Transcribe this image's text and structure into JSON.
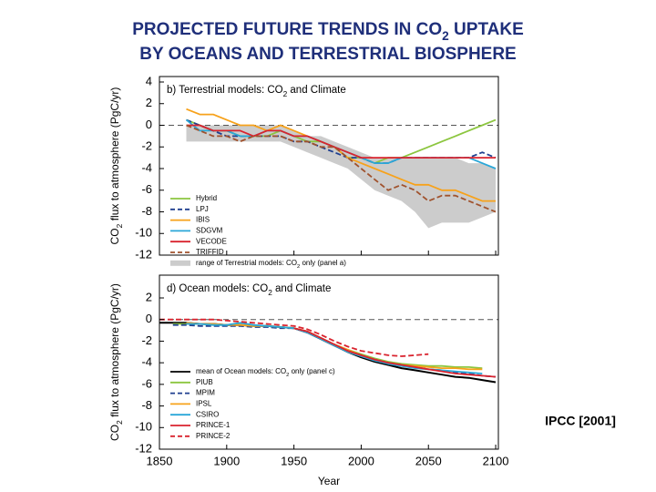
{
  "title_lines": [
    [
      "PROJECTED FUTURE TRENDS IN CO",
      "2",
      " UPTAKE"
    ],
    [
      "BY OCEANS AND TERRESTRIAL BIOSPHERE"
    ]
  ],
  "annotation": "IPCC [2001]",
  "chart_data": [
    {
      "type": "line",
      "title": [
        "b) Terrestrial models: CO",
        "2",
        " and Climate"
      ],
      "ylabel": [
        "CO",
        "2",
        " flux to atmosphere (PgC/yr)"
      ],
      "x": [
        1870,
        1880,
        1890,
        1900,
        1910,
        1920,
        1930,
        1940,
        1950,
        1960,
        1970,
        1980,
        1990,
        2000,
        2010,
        2020,
        2030,
        2040,
        2050,
        2060,
        2070,
        2080,
        2090,
        2100
      ],
      "xlim": [
        1850,
        2102
      ],
      "xticks": [
        1850,
        1900,
        1950,
        2000,
        2050,
        2100
      ],
      "ylim": [
        -12,
        4
      ],
      "yticks": [
        4,
        2,
        0,
        -2,
        -4,
        -6,
        -8,
        -10,
        -12
      ],
      "band": {
        "name": [
          "range of Terrestrial models: CO",
          "2",
          " only (panel a)"
        ],
        "color": "#cccccc",
        "lower": [
          -1.5,
          -1.5,
          -1.5,
          -1.5,
          -1.5,
          -1.5,
          -1.5,
          -1.5,
          -2,
          -2.5,
          -3,
          -3.5,
          -4,
          -5,
          -6,
          -6.5,
          -7,
          -8,
          -9.5,
          -9,
          -9,
          -9,
          -8.5,
          -8
        ],
        "upper": [
          0,
          0,
          0,
          0,
          0,
          0,
          0,
          0,
          -0.5,
          -1,
          -1,
          -1.5,
          -2,
          -2.5,
          -3,
          -3,
          -3,
          -3,
          -3,
          -3,
          -3,
          -3.5,
          -3.5,
          -4
        ]
      },
      "series": [
        {
          "name": "Hybrid",
          "color": "#8cc63f",
          "dashed": false,
          "values": [
            0.5,
            0,
            -0.5,
            -0.5,
            -1,
            -1,
            -1,
            -0.5,
            -1,
            -1.5,
            -1.5,
            -2,
            -3,
            -3,
            -3.5,
            -3,
            -3,
            -2.5,
            -2,
            -1.5,
            -1,
            -0.5,
            0,
            0.5
          ]
        },
        {
          "name": "LPJ",
          "color": "#1f3f8f",
          "dashed": true,
          "values": [
            0.5,
            0,
            -0.5,
            -1,
            -1,
            -1,
            -1,
            -1,
            -1.5,
            -1.5,
            -2,
            -2.5,
            -3,
            -3,
            -3.5,
            -3.5,
            -3,
            -3,
            -3,
            -3,
            -3,
            -3,
            -2.5,
            -3
          ]
        },
        {
          "name": "IBIS",
          "color": "#f7a21b",
          "dashed": false,
          "values": [
            1.5,
            1,
            1,
            0.5,
            0,
            0,
            -0.5,
            0,
            -0.5,
            -1,
            -1.5,
            -2,
            -3,
            -3.5,
            -4,
            -4.5,
            -5,
            -5.5,
            -5.5,
            -6,
            -6,
            -6.5,
            -7,
            -7
          ]
        },
        {
          "name": "SDGVM",
          "color": "#2aa7d8",
          "dashed": false,
          "values": [
            0.5,
            -0.5,
            -0.5,
            -0.5,
            -1,
            -1,
            -0.5,
            -0.5,
            -1,
            -1,
            -1.5,
            -2,
            -2.5,
            -3,
            -3.5,
            -3.5,
            -3,
            -3,
            -3,
            -3,
            -3,
            -3,
            -3.5,
            -4
          ]
        },
        {
          "name": "VECODE",
          "color": "#d9232e",
          "dashed": false,
          "values": [
            0,
            0,
            -0.5,
            -0.5,
            -0.5,
            -1,
            -0.5,
            -0.5,
            -1,
            -1,
            -1.5,
            -2,
            -2.5,
            -3,
            -3,
            -3,
            -3,
            -3,
            -3,
            -3,
            -3,
            -3,
            -3,
            -3
          ]
        },
        {
          "name": "TRIFFID",
          "color": "#a0522d",
          "dashed": true,
          "values": [
            0,
            -0.5,
            -1,
            -1,
            -1.5,
            -1,
            -1,
            -1,
            -1.5,
            -1.5,
            -2,
            -2,
            -3,
            -4,
            -5,
            -6,
            -5.5,
            -6,
            -7,
            -6.5,
            -6.5,
            -7,
            -7.5,
            -8
          ]
        }
      ]
    },
    {
      "type": "line",
      "title": [
        "d) Ocean models: CO",
        "2",
        " and Climate"
      ],
      "ylabel": [
        "CO",
        "2",
        " flux to atmosphere (PgC/yr)"
      ],
      "xlabel": "Year",
      "x": [
        1850,
        1860,
        1870,
        1880,
        1890,
        1900,
        1910,
        1920,
        1930,
        1940,
        1950,
        1960,
        1970,
        1980,
        1990,
        2000,
        2010,
        2020,
        2030,
        2040,
        2050,
        2060,
        2070,
        2080,
        2090,
        2100
      ],
      "xlim": [
        1850,
        2102
      ],
      "xticks": [
        1850,
        1900,
        1950,
        2000,
        2050,
        2100
      ],
      "ylim": [
        -12,
        4
      ],
      "yticks": [
        2,
        0,
        -2,
        -4,
        -6,
        -8,
        -10,
        -12
      ],
      "series": [
        {
          "name": [
            "mean of Ocean models: CO",
            "2",
            " only (panel c)"
          ],
          "color": "#000000",
          "dashed": false,
          "values": [
            -0.3,
            -0.3,
            -0.3,
            -0.4,
            -0.4,
            -0.5,
            -0.5,
            -0.6,
            -0.6,
            -0.7,
            -0.8,
            -1.2,
            -1.8,
            -2.4,
            -3,
            -3.5,
            -3.9,
            -4.2,
            -4.5,
            -4.7,
            -4.9,
            -5.1,
            -5.3,
            -5.4,
            -5.6,
            -5.8
          ]
        },
        {
          "name": "PIUB",
          "color": "#8cc63f",
          "dashed": false,
          "values": [
            null,
            -0.4,
            -0.4,
            -0.4,
            -0.5,
            -0.5,
            -0.5,
            -0.6,
            -0.6,
            -0.7,
            -0.8,
            -1.1,
            -1.7,
            -2.3,
            -2.8,
            -3.2,
            -3.6,
            -3.9,
            -4.1,
            -4.2,
            -4.3,
            -4.3,
            -4.4,
            -4.4,
            -4.5,
            null
          ]
        },
        {
          "name": "MPIM",
          "color": "#1f3f8f",
          "dashed": true,
          "values": [
            null,
            -0.5,
            -0.5,
            -0.6,
            -0.6,
            -0.6,
            -0.6,
            -0.7,
            -0.7,
            -0.8,
            -0.8,
            -1.2,
            -1.7,
            -2.3,
            -2.9,
            -3.3,
            -3.7,
            -4,
            -4.2,
            -4.4,
            -4.6,
            -4.7,
            -4.9,
            -5,
            -5.2,
            -5.3
          ]
        },
        {
          "name": "IPSL",
          "color": "#f7a21b",
          "dashed": false,
          "values": [
            null,
            null,
            -0.3,
            -0.4,
            -0.4,
            -0.5,
            -0.5,
            -0.6,
            -0.6,
            -0.7,
            -0.8,
            -1.1,
            -1.7,
            -2.3,
            -2.8,
            -3.3,
            -3.7,
            -4,
            -4.2,
            -4.3,
            -4.4,
            -4.5,
            -4.5,
            -4.6,
            -4.6,
            null
          ]
        },
        {
          "name": "CSIRO",
          "color": "#2aa7d8",
          "dashed": false,
          "values": [
            null,
            null,
            -0.4,
            -0.4,
            -0.5,
            -0.5,
            -0.3,
            -0.5,
            -0.6,
            -0.7,
            -0.8,
            -1.2,
            -1.8,
            -2.4,
            -3,
            -3.4,
            -3.8,
            -4.1,
            -4.3,
            -4.5,
            -4.6,
            -4.7,
            -4.8,
            -4.9,
            -5,
            null
          ]
        },
        {
          "name": "PRINCE-1",
          "color": "#d9232e",
          "dashed": false,
          "values": [
            null,
            null,
            null,
            null,
            null,
            null,
            null,
            null,
            null,
            null,
            -0.8,
            -1.1,
            -1.7,
            -2.3,
            -2.9,
            -3.3,
            -3.7,
            -4,
            -4.2,
            -4.4,
            -4.6,
            -4.8,
            -5,
            -5.1,
            -5.2,
            -5.3
          ]
        },
        {
          "name": "PRINCE-2",
          "color": "#d9232e",
          "dashed": true,
          "values": [
            0,
            0,
            0,
            0,
            0,
            -0.1,
            -0.2,
            -0.3,
            -0.4,
            -0.5,
            -0.6,
            -0.9,
            -1.4,
            -2,
            -2.5,
            -2.9,
            -3.1,
            -3.3,
            -3.4,
            -3.3,
            -3.2,
            null,
            null,
            null,
            null,
            null
          ]
        }
      ]
    }
  ]
}
